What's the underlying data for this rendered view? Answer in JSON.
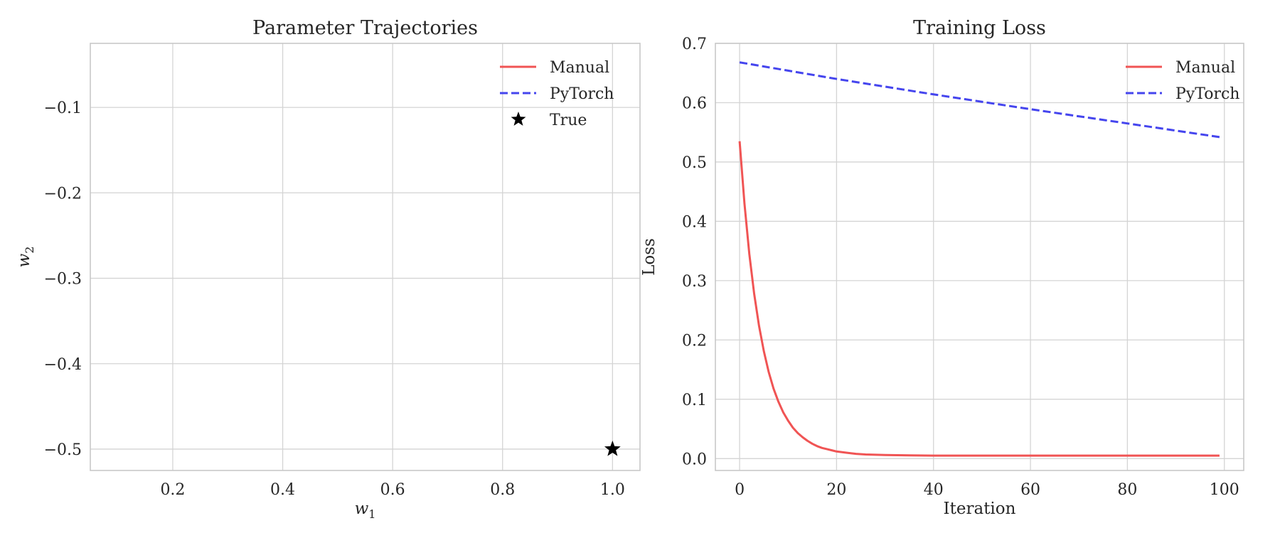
{
  "chart_data": [
    {
      "type": "line",
      "title": "Parameter Trajectories",
      "xlabel": "w",
      "xlabel_sub": "1",
      "ylabel": "w",
      "ylabel_sub": "2",
      "xlim": [
        0.05,
        1.05
      ],
      "ylim": [
        -0.525,
        -0.025
      ],
      "xticks": [
        0.2,
        0.4,
        0.6,
        0.8,
        1.0
      ],
      "xtick_labels": [
        "0.2",
        "0.4",
        "0.6",
        "0.8",
        "1.0"
      ],
      "yticks": [
        -0.5,
        -0.4,
        -0.3,
        -0.2,
        -0.1
      ],
      "ytick_labels": [
        "−0.5",
        "−0.4",
        "−0.3",
        "−0.2",
        "−0.1"
      ],
      "grid": true,
      "legend_position": "top-right",
      "series": [
        {
          "name": "Manual",
          "style": "solid",
          "color": "#f05454",
          "x": [],
          "y": []
        },
        {
          "name": "PyTorch",
          "style": "dashed",
          "color": "#4545ee",
          "x": [],
          "y": []
        }
      ],
      "points": [
        {
          "name": "True",
          "marker": "star",
          "color": "#000000",
          "x": 1.0,
          "y": -0.5
        }
      ]
    },
    {
      "type": "line",
      "title": "Training Loss",
      "xlabel": "Iteration",
      "ylabel": "Loss",
      "xlim": [
        -5,
        104
      ],
      "ylim": [
        -0.02,
        0.7
      ],
      "xticks": [
        0,
        20,
        40,
        60,
        80,
        100
      ],
      "xtick_labels": [
        "0",
        "20",
        "40",
        "60",
        "80",
        "100"
      ],
      "yticks": [
        0.0,
        0.1,
        0.2,
        0.3,
        0.4,
        0.5,
        0.6,
        0.7
      ],
      "ytick_labels": [
        "0.0",
        "0.1",
        "0.2",
        "0.3",
        "0.4",
        "0.5",
        "0.6",
        "0.7"
      ],
      "grid": true,
      "legend_position": "top-right",
      "series": [
        {
          "name": "Manual",
          "style": "solid",
          "color": "#f05454",
          "x": [
            0,
            1,
            2,
            3,
            4,
            5,
            6,
            7,
            8,
            9,
            10,
            11,
            12,
            13,
            14,
            15,
            16,
            17,
            18,
            19,
            20,
            22,
            24,
            26,
            28,
            30,
            35,
            40,
            50,
            60,
            70,
            80,
            90,
            99
          ],
          "y": [
            0.535,
            0.43,
            0.345,
            0.278,
            0.224,
            0.181,
            0.146,
            0.118,
            0.096,
            0.078,
            0.064,
            0.052,
            0.043,
            0.036,
            0.03,
            0.025,
            0.021,
            0.018,
            0.016,
            0.014,
            0.012,
            0.01,
            0.008,
            0.007,
            0.0065,
            0.006,
            0.0055,
            0.005,
            0.005,
            0.005,
            0.005,
            0.005,
            0.005,
            0.005
          ]
        },
        {
          "name": "PyTorch",
          "style": "dashed",
          "color": "#4545ee",
          "x": [
            0,
            20,
            40,
            60,
            80,
            99
          ],
          "y": [
            0.668,
            0.64,
            0.614,
            0.589,
            0.565,
            0.542
          ]
        }
      ]
    }
  ]
}
